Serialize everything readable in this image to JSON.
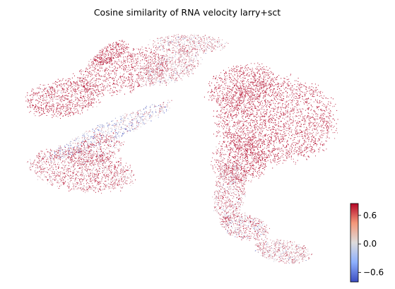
{
  "chart_data": {
    "type": "scatter",
    "title": "Cosine similarity of RNA velocity larry+sct",
    "xlabel": "",
    "ylabel": "",
    "grid": false,
    "axes_visible": false,
    "point_color_metric": "cosine similarity",
    "colormap": "coolwarm",
    "colormap_colors": [
      "#3b4cc0",
      "#dddcdc",
      "#b40426"
    ],
    "colorbar": {
      "range": [
        -0.8,
        0.85
      ],
      "ticks": [
        -0.6,
        0.0,
        0.6
      ],
      "tick_labels": [
        "−0.6",
        "0.0",
        "0.6"
      ],
      "placement": "right"
    },
    "clusters": [
      {
        "id": "top-left-arm",
        "cx": 0.16,
        "cy": 0.62,
        "mean_value": 0.7
      },
      {
        "id": "upper-middle",
        "cx": 0.34,
        "cy": 0.7,
        "mean_value": 0.7
      },
      {
        "id": "top-cap",
        "cx": 0.47,
        "cy": 0.82,
        "mean_value": 0.3
      },
      {
        "id": "right-body",
        "cx": 0.66,
        "cy": 0.55,
        "mean_value": 0.75
      },
      {
        "id": "diagonal-band",
        "cx": 0.25,
        "cy": 0.43,
        "mean_value": -0.1
      },
      {
        "id": "lower-left-lobe",
        "cx": 0.13,
        "cy": 0.34,
        "mean_value": 0.55
      },
      {
        "id": "lower-stem",
        "cx": 0.58,
        "cy": 0.22,
        "mean_value": 0.4
      },
      {
        "id": "bottom-tip",
        "cx": 0.71,
        "cy": 0.05,
        "mean_value": 0.3
      }
    ]
  }
}
